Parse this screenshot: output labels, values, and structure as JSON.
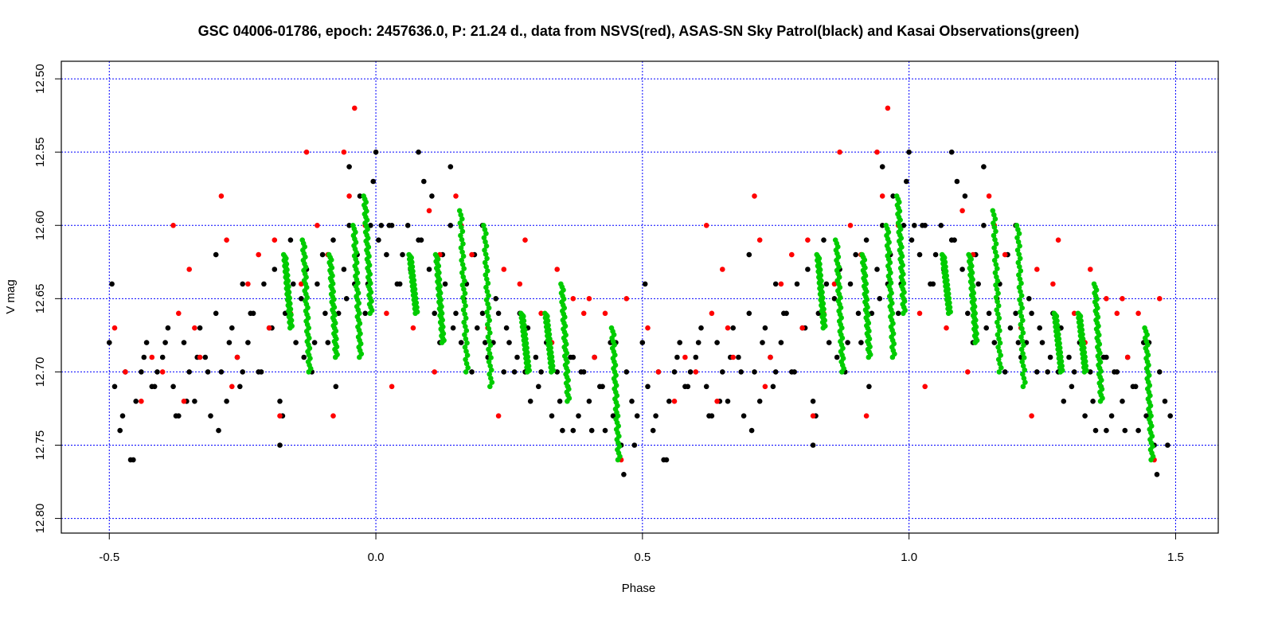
{
  "chart_data": {
    "type": "scatter",
    "title": "GSC 04006-01786, epoch: 2457636.0, P: 21.24 d., data from NSVS(red), ASAS-SN Sky Patrol(black) and Kasai Observations(green)",
    "xlabel": "Phase",
    "ylabel": "V mag",
    "xlim": [
      -0.59,
      1.58
    ],
    "ylim": [
      12.81,
      12.488
    ],
    "y_inverted": true,
    "x_ticks": [
      -0.5,
      0.0,
      0.5,
      1.0,
      1.5
    ],
    "x_tick_labels": [
      "-0.5",
      "0.0",
      "0.5",
      "1.0",
      "1.5"
    ],
    "y_ticks": [
      12.5,
      12.55,
      12.6,
      12.65,
      12.7,
      12.75,
      12.8
    ],
    "y_tick_labels": [
      "12.50",
      "12.55",
      "12.60",
      "12.65",
      "12.70",
      "12.75",
      "12.80"
    ],
    "grid": true,
    "grid_color": "#0000ff",
    "series_colors": {
      "ASAS-SN": "#000000",
      "NSVS": "#ff0000",
      "Kasai": "#00cc00"
    },
    "phase_repeat": "points in phase -0.5..0.5 are repeated at phase +1.0",
    "series": [
      {
        "name": "ASAS-SN Sky Patrol",
        "color": "#000000",
        "x": [
          -0.5,
          -0.49,
          -0.48,
          -0.47,
          -0.46,
          -0.45,
          -0.44,
          -0.43,
          -0.42,
          -0.41,
          -0.4,
          -0.39,
          -0.38,
          -0.37,
          -0.36,
          -0.35,
          -0.34,
          -0.33,
          -0.32,
          -0.31,
          -0.3,
          -0.29,
          -0.28,
          -0.27,
          -0.26,
          -0.25,
          -0.24,
          -0.23,
          -0.22,
          -0.21,
          -0.2,
          -0.19,
          -0.18,
          -0.17,
          -0.16,
          -0.15,
          -0.14,
          -0.13,
          -0.12,
          -0.11,
          -0.1,
          -0.09,
          -0.08,
          -0.07,
          -0.06,
          -0.05,
          -0.04,
          -0.03,
          -0.02,
          -0.01,
          0.0,
          0.01,
          0.02,
          0.03,
          0.04,
          0.05,
          0.06,
          0.07,
          0.08,
          0.09,
          0.1,
          0.11,
          0.12,
          0.13,
          0.14,
          0.15,
          0.16,
          0.17,
          0.18,
          0.19,
          0.2,
          0.21,
          0.22,
          0.23,
          0.24,
          0.25,
          0.26,
          0.27,
          0.28,
          0.29,
          0.3,
          0.31,
          0.32,
          0.33,
          0.34,
          0.35,
          0.36,
          0.37,
          0.38,
          0.39,
          0.4,
          0.41,
          0.42,
          0.43,
          0.44,
          0.45,
          0.46,
          0.47,
          0.48,
          0.49,
          -0.495,
          -0.475,
          -0.455,
          -0.435,
          -0.415,
          -0.395,
          -0.375,
          -0.355,
          -0.335,
          -0.315,
          -0.295,
          -0.275,
          -0.255,
          -0.235,
          -0.215,
          -0.195,
          -0.175,
          -0.155,
          -0.135,
          -0.115,
          -0.095,
          -0.075,
          -0.055,
          -0.035,
          -0.015,
          0.005,
          0.025,
          0.045,
          0.065,
          0.085,
          0.105,
          0.125,
          0.145,
          0.165,
          0.185,
          0.205,
          0.225,
          0.245,
          0.265,
          0.285,
          0.305,
          0.325,
          0.345,
          0.365,
          0.385,
          0.405,
          0.425,
          0.445,
          0.465,
          0.485,
          -0.3,
          -0.25,
          -0.18,
          -0.05,
          -0.005,
          0.08,
          0.14,
          0.2,
          0.37,
          0.45
        ],
        "y": [
          12.68,
          12.71,
          12.74,
          12.7,
          12.76,
          12.72,
          12.7,
          12.68,
          12.71,
          12.7,
          12.69,
          12.67,
          12.71,
          12.73,
          12.68,
          12.7,
          12.72,
          12.67,
          12.69,
          12.73,
          12.66,
          12.7,
          12.72,
          12.67,
          12.69,
          12.64,
          12.68,
          12.66,
          12.7,
          12.64,
          12.67,
          12.63,
          12.72,
          12.66,
          12.61,
          12.68,
          12.65,
          12.63,
          12.7,
          12.64,
          12.62,
          12.68,
          12.61,
          12.66,
          12.63,
          12.6,
          12.64,
          12.58,
          12.66,
          12.6,
          12.55,
          12.6,
          12.62,
          12.6,
          12.64,
          12.62,
          12.6,
          12.64,
          12.61,
          12.57,
          12.63,
          12.66,
          12.68,
          12.64,
          12.6,
          12.66,
          12.68,
          12.64,
          12.7,
          12.67,
          12.66,
          12.69,
          12.68,
          12.66,
          12.7,
          12.68,
          12.7,
          12.66,
          12.7,
          12.72,
          12.69,
          12.7,
          12.68,
          12.73,
          12.7,
          12.74,
          12.71,
          12.69,
          12.73,
          12.7,
          12.72,
          12.69,
          12.71,
          12.74,
          12.68,
          12.73,
          12.75,
          12.7,
          12.72,
          12.73,
          12.64,
          12.73,
          12.76,
          12.69,
          12.71,
          12.68,
          12.73,
          12.72,
          12.69,
          12.7,
          12.74,
          12.68,
          12.71,
          12.66,
          12.7,
          12.67,
          12.73,
          12.64,
          12.69,
          12.68,
          12.66,
          12.71,
          12.65,
          12.62,
          12.64,
          12.61,
          12.6,
          12.64,
          12.63,
          12.61,
          12.58,
          12.62,
          12.67,
          12.65,
          12.62,
          12.68,
          12.65,
          12.67,
          12.69,
          12.67,
          12.71,
          12.68,
          12.72,
          12.69,
          12.7,
          12.74,
          12.71,
          12.73,
          12.77,
          12.75,
          12.62,
          12.7,
          12.75,
          12.56,
          12.57,
          12.55,
          12.56,
          12.6,
          12.74,
          12.68
        ]
      },
      {
        "name": "NSVS",
        "color": "#ff0000",
        "x": [
          -0.49,
          -0.47,
          -0.44,
          -0.42,
          -0.38,
          -0.37,
          -0.36,
          -0.35,
          -0.33,
          -0.29,
          -0.28,
          -0.27,
          -0.24,
          -0.22,
          -0.2,
          -0.18,
          -0.16,
          -0.13,
          -0.11,
          -0.08,
          -0.06,
          -0.04,
          -0.02,
          0.02,
          0.03,
          0.07,
          0.1,
          0.12,
          0.15,
          0.18,
          0.21,
          0.23,
          0.24,
          0.28,
          0.31,
          0.34,
          0.37,
          0.39,
          0.41,
          0.43,
          0.47,
          -0.4,
          -0.34,
          -0.26,
          -0.19,
          -0.14,
          -0.09,
          -0.05,
          0.11,
          0.16,
          0.27,
          0.33,
          0.4,
          0.46
        ],
        "y": [
          12.67,
          12.7,
          12.72,
          12.69,
          12.6,
          12.66,
          12.72,
          12.63,
          12.69,
          12.58,
          12.61,
          12.71,
          12.64,
          12.62,
          12.67,
          12.73,
          12.66,
          12.55,
          12.6,
          12.73,
          12.55,
          12.52,
          12.6,
          12.66,
          12.71,
          12.67,
          12.59,
          12.62,
          12.58,
          12.62,
          12.67,
          12.73,
          12.63,
          12.61,
          12.66,
          12.63,
          12.65,
          12.66,
          12.69,
          12.66,
          12.65,
          12.7,
          12.67,
          12.69,
          12.61,
          12.64,
          12.62,
          12.58,
          12.7,
          12.6,
          12.64,
          12.68,
          12.65,
          12.76
        ]
      },
      {
        "name": "Kasai Observations",
        "color": "#00cc00",
        "cluster_centers_x": [
          -0.165,
          -0.13,
          -0.08,
          -0.035,
          -0.015,
          0.07,
          0.12,
          0.165,
          0.21,
          0.28,
          0.325,
          0.355,
          0.45
        ],
        "cluster_mag_ranges": [
          [
            12.62,
            12.67
          ],
          [
            12.61,
            12.7
          ],
          [
            12.62,
            12.69
          ],
          [
            12.6,
            12.69
          ],
          [
            12.58,
            12.66
          ],
          [
            12.62,
            12.66
          ],
          [
            12.62,
            12.68
          ],
          [
            12.59,
            12.7
          ],
          [
            12.6,
            12.71
          ],
          [
            12.66,
            12.7
          ],
          [
            12.66,
            12.7
          ],
          [
            12.64,
            12.72
          ],
          [
            12.67,
            12.76
          ]
        ]
      }
    ]
  }
}
